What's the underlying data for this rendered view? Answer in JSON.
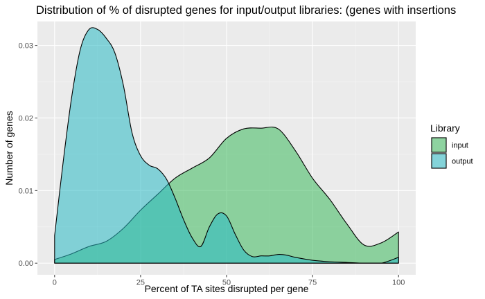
{
  "chart_data": {
    "type": "area",
    "title": "Distribution of % of disrupted genes for input/output libraries: (genes with insertions",
    "xlabel": "Percent of TA sites disrupted per gene",
    "ylabel": "Number of genes",
    "xlim": [
      -5,
      105
    ],
    "ylim": [
      -0.0016,
      0.0333
    ],
    "x_ticks": [
      0,
      25,
      50,
      75,
      100
    ],
    "x_tick_labels": [
      "0",
      "25",
      "50",
      "75",
      "100"
    ],
    "y_ticks": [
      0.0,
      0.01,
      0.02,
      0.03
    ],
    "y_tick_labels": [
      "0.00",
      "0.01",
      "0.02",
      "0.03"
    ],
    "grid": true,
    "legend": {
      "title": "Library",
      "placement": "right"
    },
    "series": [
      {
        "name": "input",
        "color": "#3cb95c",
        "opacity": 0.55,
        "x": [
          0,
          5,
          10,
          15,
          20,
          25,
          30,
          35,
          40,
          45,
          50,
          55,
          60,
          65,
          70,
          75,
          80,
          85,
          90,
          95,
          100
        ],
        "y": [
          0.0005,
          0.0013,
          0.0023,
          0.003,
          0.0048,
          0.0073,
          0.0095,
          0.0117,
          0.0131,
          0.0145,
          0.0172,
          0.0185,
          0.0186,
          0.0185,
          0.0155,
          0.0117,
          0.0088,
          0.0054,
          0.0025,
          0.0028,
          0.0043
        ]
      },
      {
        "name": "output",
        "color": "#2ab9c4",
        "opacity": 0.55,
        "x": [
          0,
          2.5,
          5,
          7.5,
          10,
          12.5,
          15,
          17.5,
          20,
          22.5,
          25,
          27.5,
          30,
          32.5,
          35,
          37.5,
          40,
          42.5,
          45,
          47.5,
          50,
          52.5,
          55,
          57.5,
          60,
          62.5,
          65,
          67.5,
          70,
          75,
          80,
          85,
          90,
          95,
          100
        ],
        "y": [
          0.0038,
          0.014,
          0.023,
          0.0295,
          0.0322,
          0.0322,
          0.031,
          0.029,
          0.0245,
          0.018,
          0.0148,
          0.0135,
          0.013,
          0.0116,
          0.009,
          0.006,
          0.0035,
          0.0023,
          0.005,
          0.0068,
          0.0065,
          0.004,
          0.0018,
          0.0009,
          0.001,
          0.001,
          0.0012,
          0.0011,
          0.0008,
          0.0004,
          0.0002,
          0.0001,
          0.0,
          0.0,
          0.0008
        ]
      }
    ]
  }
}
